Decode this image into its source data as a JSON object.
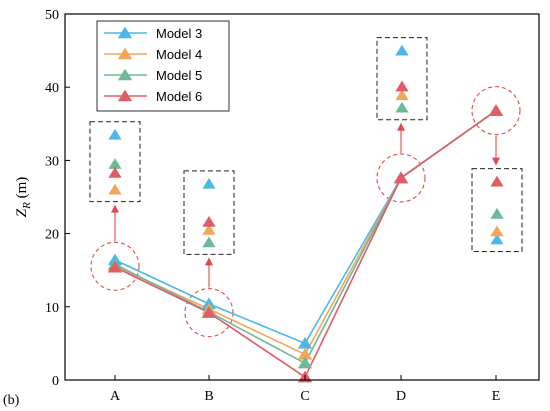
{
  "chart_data": {
    "type": "line",
    "panel_label": "(b)",
    "ylabel_main": "Z",
    "ylabel_sub": "R",
    "ylabel_unit": " (m)",
    "categories": [
      "A",
      "B",
      "C",
      "D",
      "E"
    ],
    "ylim": [
      0,
      50
    ],
    "yticks": [
      0,
      10,
      20,
      30,
      40,
      50
    ],
    "grid": false,
    "legend_position": "top-left",
    "series": [
      {
        "name": "Model 3",
        "color": "#4db8e8",
        "values": [
          16.4,
          10.4,
          5.0,
          27.6,
          36.8
        ]
      },
      {
        "name": "Model 4",
        "color": "#f2a65a",
        "values": [
          15.6,
          9.7,
          3.5,
          27.6,
          36.8
        ]
      },
      {
        "name": "Model 5",
        "color": "#6fb898",
        "values": [
          15.8,
          9.3,
          2.3,
          27.6,
          36.8
        ]
      },
      {
        "name": "Model 6",
        "color": "#e05c66",
        "values": [
          15.4,
          9.2,
          0.4,
          27.6,
          36.8
        ]
      }
    ],
    "callouts": [
      {
        "category": "A",
        "direction": "up",
        "values": [
          33.5,
          26.0,
          29.5,
          28.3
        ]
      },
      {
        "category": "B",
        "direction": "up",
        "values": [
          26.8,
          20.5,
          18.8,
          21.6
        ]
      },
      {
        "category": "D",
        "direction": "up",
        "values": [
          45.0,
          38.9,
          37.2,
          40.1
        ]
      },
      {
        "category": "E",
        "direction": "down",
        "values": [
          19.2,
          20.3,
          22.7,
          27.1
        ]
      }
    ]
  }
}
